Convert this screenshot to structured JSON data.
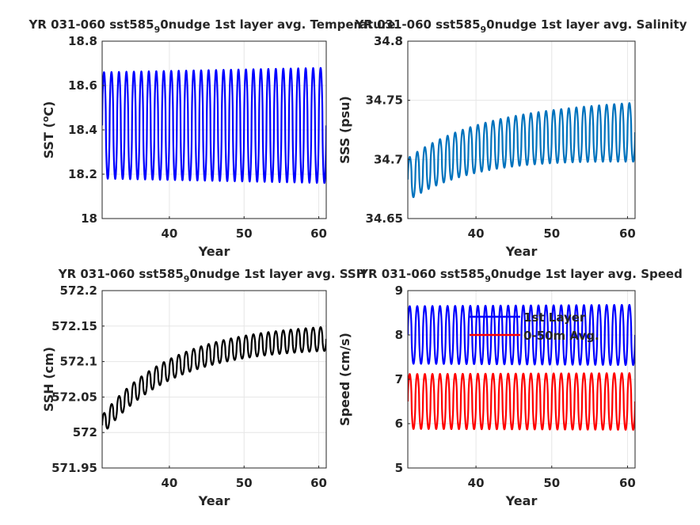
{
  "figure": {
    "background": "#ffffff",
    "axis_color": "#262626",
    "grid_color": "#e6e6e6"
  },
  "chart_data": [
    {
      "type": "line",
      "title": "YR 031-060 sst585",
      "title_sub": "9",
      "title_rest": "0nudge 1st layer avg. Temperature",
      "xlabel": "Year",
      "ylabel": "SST (",
      "ylabel_sup": "o",
      "ylabel_rest": "C)",
      "xlim": [
        31,
        61
      ],
      "ylim": [
        18.0,
        18.8
      ],
      "xticks": [
        40,
        50,
        60
      ],
      "xtick_labels": [
        "40",
        "50",
        "60"
      ],
      "yticks": [
        18.0,
        18.2,
        18.4,
        18.6,
        18.8
      ],
      "ytick_labels": [
        "18",
        "18.2",
        "18.4",
        "18.6",
        "18.8"
      ],
      "grid": true,
      "series": [
        {
          "color": "#0000ff",
          "kind": "seasonal",
          "mean_start": 18.42,
          "mean_end": 18.42,
          "amp_start": 0.24,
          "amp_end": 0.26
        }
      ]
    },
    {
      "type": "line",
      "title": "YR 031-060 sst585",
      "title_sub": "9",
      "title_rest": "0nudge 1st layer avg. Salinity",
      "xlabel": "Year",
      "ylabel": "SSS (psu)",
      "ylabel_sup": "",
      "ylabel_rest": "",
      "xlim": [
        31,
        61
      ],
      "ylim": [
        34.65,
        34.8
      ],
      "xticks": [
        40,
        50,
        60
      ],
      "xtick_labels": [
        "40",
        "50",
        "60"
      ],
      "yticks": [
        34.65,
        34.7,
        34.75,
        34.8
      ],
      "ytick_labels": [
        "34.65",
        "34.7",
        "34.75",
        "34.8"
      ],
      "grid": true,
      "series": [
        {
          "color": "#0072bd",
          "kind": "seasonal",
          "mean_start": 34.683,
          "mean_end": 34.723,
          "amp_start": 0.018,
          "amp_end": 0.025
        }
      ]
    },
    {
      "type": "line",
      "title": "YR 031-060 sst585",
      "title_sub": "9",
      "title_rest": "0nudge 1st layer avg. SSH",
      "xlabel": "Year",
      "ylabel": "SSH (cm)",
      "ylabel_sup": "",
      "ylabel_rest": "",
      "xlim": [
        31,
        61
      ],
      "ylim": [
        571.95,
        572.2
      ],
      "xticks": [
        40,
        50,
        60
      ],
      "xtick_labels": [
        "40",
        "50",
        "60"
      ],
      "yticks": [
        571.95,
        572.0,
        572.05,
        572.1,
        572.15,
        572.2
      ],
      "ytick_labels": [
        "571.95",
        "572",
        "572.05",
        "572.1",
        "572.15",
        "572.2"
      ],
      "grid": true,
      "series": [
        {
          "color": "#000000",
          "kind": "seasonal",
          "mean_start": 572.01,
          "mean_end": 572.132,
          "amp_start": 0.014,
          "amp_end": 0.017
        }
      ]
    },
    {
      "type": "line",
      "title": "YR 031-060 sst585",
      "title_sub": "9",
      "title_rest": "0nudge 1st layer avg. Speed",
      "xlabel": "Year",
      "ylabel": "Speed (cm/s)",
      "ylabel_sup": "",
      "ylabel_rest": "",
      "xlim": [
        31,
        61
      ],
      "ylim": [
        5,
        9
      ],
      "xticks": [
        40,
        50,
        60
      ],
      "xtick_labels": [
        "40",
        "50",
        "60"
      ],
      "yticks": [
        5,
        6,
        7,
        8,
        9
      ],
      "ytick_labels": [
        "5",
        "6",
        "7",
        "8",
        "9"
      ],
      "grid": true,
      "legend": {
        "placement": "top",
        "entries": [
          "1st Layer",
          "0-50m Avg."
        ]
      },
      "series": [
        {
          "name": "1st Layer",
          "color": "#0000ff",
          "kind": "seasonal",
          "mean_start": 8.0,
          "mean_end": 8.0,
          "amp_start": 0.65,
          "amp_end": 0.68
        },
        {
          "name": "0-50m Avg.",
          "color": "#ff0000",
          "kind": "seasonal",
          "mean_start": 6.5,
          "mean_end": 6.5,
          "amp_start": 0.62,
          "amp_end": 0.64
        }
      ]
    }
  ]
}
